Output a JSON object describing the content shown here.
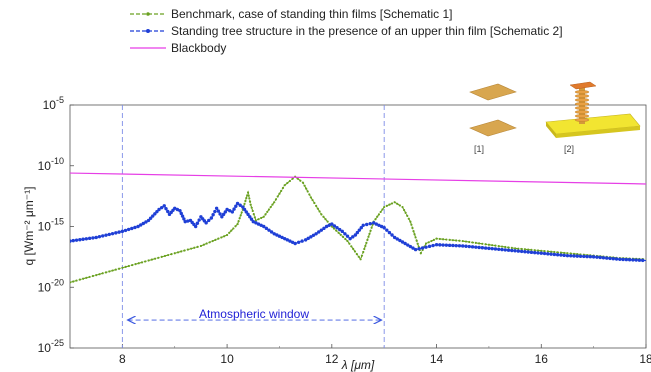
{
  "chart_data": {
    "type": "line",
    "title": "",
    "xlabel": "λ [μm]",
    "ylabel": "q [Wm⁻² μm⁻¹]",
    "xlim": [
      7,
      18
    ],
    "ylim_log10": [
      -25,
      -5
    ],
    "yscale": "log",
    "x_ticks": [
      "8",
      "10",
      "12",
      "14",
      "16",
      "18"
    ],
    "y_ticks": [
      {
        "base": "10",
        "exp": "-25"
      },
      {
        "base": "10",
        "exp": "-20"
      },
      {
        "base": "10",
        "exp": "-15"
      },
      {
        "base": "10",
        "exp": "-10"
      },
      {
        "base": "10",
        "exp": "-5"
      }
    ],
    "grid": false,
    "legend_position": "top",
    "series": [
      {
        "name": "Benchmark, case of standing thin films [Schematic 1]",
        "color": "#6aa121",
        "marker": "dot",
        "log10_q": [
          [
            7.0,
            -19.6
          ],
          [
            7.5,
            -19.0
          ],
          [
            8.0,
            -18.4
          ],
          [
            8.5,
            -17.8
          ],
          [
            9.0,
            -17.2
          ],
          [
            9.5,
            -16.6
          ],
          [
            10.0,
            -15.7
          ],
          [
            10.2,
            -14.8
          ],
          [
            10.3,
            -13.6
          ],
          [
            10.4,
            -12.2
          ],
          [
            10.45,
            -13.2
          ],
          [
            10.55,
            -14.5
          ],
          [
            10.7,
            -14.2
          ],
          [
            10.9,
            -13.0
          ],
          [
            11.1,
            -11.6
          ],
          [
            11.3,
            -10.9
          ],
          [
            11.45,
            -11.4
          ],
          [
            11.6,
            -12.6
          ],
          [
            11.8,
            -14.0
          ],
          [
            12.0,
            -15.0
          ],
          [
            12.3,
            -16.2
          ],
          [
            12.55,
            -17.7
          ],
          [
            12.6,
            -17.1
          ],
          [
            12.8,
            -14.6
          ],
          [
            13.0,
            -13.4
          ],
          [
            13.2,
            -13.0
          ],
          [
            13.35,
            -13.4
          ],
          [
            13.5,
            -14.6
          ],
          [
            13.7,
            -17.2
          ],
          [
            13.8,
            -16.4
          ],
          [
            14.0,
            -16.0
          ],
          [
            14.5,
            -16.2
          ],
          [
            15.0,
            -16.5
          ],
          [
            15.5,
            -16.8
          ],
          [
            16.0,
            -17.0
          ],
          [
            16.5,
            -17.2
          ],
          [
            17.0,
            -17.4
          ],
          [
            17.5,
            -17.6
          ],
          [
            18.0,
            -17.7
          ]
        ]
      },
      {
        "name": "Standing tree structure in the presence of an upper thin film [Schematic 2]",
        "color": "#1f3fd6",
        "marker": "dot",
        "log10_q": [
          [
            7.0,
            -16.2
          ],
          [
            7.5,
            -15.9
          ],
          [
            8.0,
            -15.4
          ],
          [
            8.3,
            -15.0
          ],
          [
            8.5,
            -14.5
          ],
          [
            8.7,
            -13.6
          ],
          [
            8.8,
            -13.3
          ],
          [
            8.9,
            -14.0
          ],
          [
            9.0,
            -13.5
          ],
          [
            9.1,
            -13.7
          ],
          [
            9.2,
            -14.6
          ],
          [
            9.3,
            -14.5
          ],
          [
            9.4,
            -15.0
          ],
          [
            9.5,
            -14.2
          ],
          [
            9.6,
            -14.7
          ],
          [
            9.7,
            -14.3
          ],
          [
            9.8,
            -13.5
          ],
          [
            9.9,
            -14.2
          ],
          [
            10.0,
            -13.6
          ],
          [
            10.1,
            -13.8
          ],
          [
            10.2,
            -13.1
          ],
          [
            10.3,
            -13.4
          ],
          [
            10.4,
            -14.0
          ],
          [
            10.5,
            -14.6
          ],
          [
            10.7,
            -15.0
          ],
          [
            10.9,
            -15.6
          ],
          [
            11.1,
            -16.0
          ],
          [
            11.3,
            -16.4
          ],
          [
            11.5,
            -16.1
          ],
          [
            11.7,
            -15.6
          ],
          [
            11.9,
            -15.0
          ],
          [
            12.0,
            -14.8
          ],
          [
            12.2,
            -15.4
          ],
          [
            12.35,
            -16.0
          ],
          [
            12.45,
            -15.7
          ],
          [
            12.6,
            -14.9
          ],
          [
            12.8,
            -14.7
          ],
          [
            13.0,
            -15.1
          ],
          [
            13.2,
            -15.9
          ],
          [
            13.4,
            -16.4
          ],
          [
            13.6,
            -16.9
          ],
          [
            13.8,
            -16.7
          ],
          [
            14.0,
            -16.5
          ],
          [
            14.5,
            -16.6
          ],
          [
            15.0,
            -16.8
          ],
          [
            15.5,
            -17.0
          ],
          [
            16.0,
            -17.2
          ],
          [
            16.5,
            -17.4
          ],
          [
            17.0,
            -17.5
          ],
          [
            17.5,
            -17.7
          ],
          [
            18.0,
            -17.8
          ]
        ]
      },
      {
        "name": "Blackbody",
        "color": "#e63fe6",
        "marker": "none",
        "log10_q": [
          [
            7.0,
            -10.6
          ],
          [
            18.0,
            -11.5
          ]
        ]
      }
    ],
    "annotations": {
      "vertical_lines_x": [
        8,
        13
      ],
      "window_arrow_x": [
        8.1,
        12.95
      ],
      "window_arrow_log10_y": -22.7,
      "window_label": "Atmospheric window",
      "window_label_color": "#1f1fd6",
      "schematic_labels": [
        "[1]",
        "[2]"
      ]
    }
  }
}
